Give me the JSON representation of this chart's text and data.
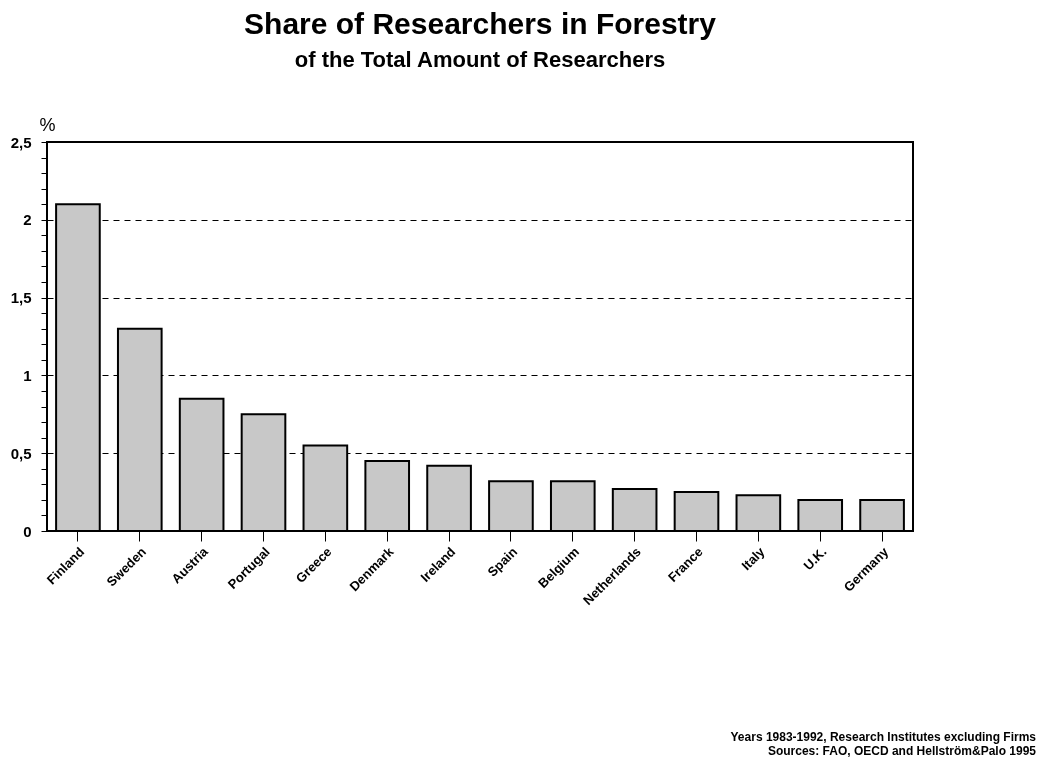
{
  "chart_data": {
    "type": "bar",
    "title": "Share of Researchers in Forestry",
    "subtitle": "of the Total Amount of Researchers",
    "ylabel": "%",
    "categories": [
      "Finland",
      "Sweden",
      "Austria",
      "Portugal",
      "Greece",
      "Denmark",
      "Ireland",
      "Spain",
      "Belgium",
      "Netherlands",
      "France",
      "Italy",
      "U.K.",
      "Germany"
    ],
    "values": [
      2.1,
      1.3,
      0.85,
      0.75,
      0.55,
      0.45,
      0.42,
      0.32,
      0.32,
      0.27,
      0.25,
      0.23,
      0.2,
      0.2
    ],
    "color": "#c8c8c8",
    "ylim": [
      0,
      2.5
    ],
    "yticks": [
      0,
      {
        "value": 0.1,
        "label": null
      },
      {
        "value": 0.2,
        "label": null
      },
      {
        "value": 0.3,
        "label": null
      },
      {
        "value": 0.4,
        "label": null
      },
      {
        "value": 0.5,
        "label": "0,5"
      },
      {
        "value": 0.6,
        "label": null
      },
      {
        "value": 0.7,
        "label": null
      },
      {
        "value": 0.8,
        "label": null
      },
      {
        "value": 0.9,
        "label": null
      },
      1,
      {
        "value": 1.1,
        "label": null
      },
      {
        "value": 1.2,
        "label": null
      },
      {
        "value": 1.3,
        "label": null
      },
      {
        "value": 1.4,
        "label": null
      },
      {
        "value": 1.5,
        "label": "1,5"
      },
      {
        "value": 1.6,
        "label": null
      },
      {
        "value": 1.7,
        "label": null
      },
      {
        "value": 1.8,
        "label": null
      },
      {
        "value": 1.9,
        "label": null
      },
      2,
      {
        "value": 2.1,
        "label": null
      },
      {
        "value": 2.2,
        "label": null
      },
      {
        "value": 2.3,
        "label": null
      },
      {
        "value": 2.4,
        "label": null
      },
      {
        "value": 2.5,
        "label": "2,5"
      }
    ],
    "grid": "y",
    "line_style": "dashed",
    "annotations": [
      "Years 1983-1992, Research Institutes excluding Firms",
      "Sources: FAO, OECD and Hellström&Palo 1995"
    ]
  }
}
